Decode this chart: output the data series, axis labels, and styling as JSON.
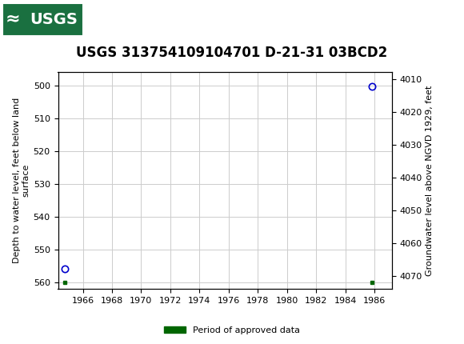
{
  "title": "USGS 313754109104701 D-21-31 03BCD2",
  "header_bg_color": "#1a7040",
  "ylabel_left": "Depth to water level, feet below land\nsurface",
  "ylabel_right": "Groundwater level above NGVD 1929, feet",
  "xlim": [
    1964.3,
    1987.2
  ],
  "ylim_left_top": 496,
  "ylim_left_bottom": 562,
  "ylim_right_top": 4008,
  "ylim_right_bottom": 4074,
  "yticks_left": [
    500,
    510,
    520,
    530,
    540,
    550,
    560
  ],
  "yticks_right": [
    4070,
    4060,
    4050,
    4040,
    4030,
    4020,
    4010
  ],
  "xticks": [
    1966,
    1968,
    1970,
    1972,
    1974,
    1976,
    1978,
    1980,
    1982,
    1984,
    1986
  ],
  "data_points": [
    {
      "year": 1964.75,
      "depth": 555.8,
      "marker": "o",
      "color": "#0000cc",
      "fillstyle": "none"
    },
    {
      "year": 1985.85,
      "depth": 500.3,
      "marker": "o",
      "color": "#0000cc",
      "fillstyle": "none"
    }
  ],
  "green_markers": [
    {
      "year": 1964.75,
      "depth": 560.0
    },
    {
      "year": 1985.85,
      "depth": 560.0
    }
  ],
  "legend_label": "Period of approved data",
  "legend_color": "#006600",
  "bg_color": "#ffffff",
  "plot_bg_color": "#ffffff",
  "grid_color": "#cccccc",
  "title_fontsize": 12,
  "axis_label_fontsize": 8,
  "tick_fontsize": 8
}
